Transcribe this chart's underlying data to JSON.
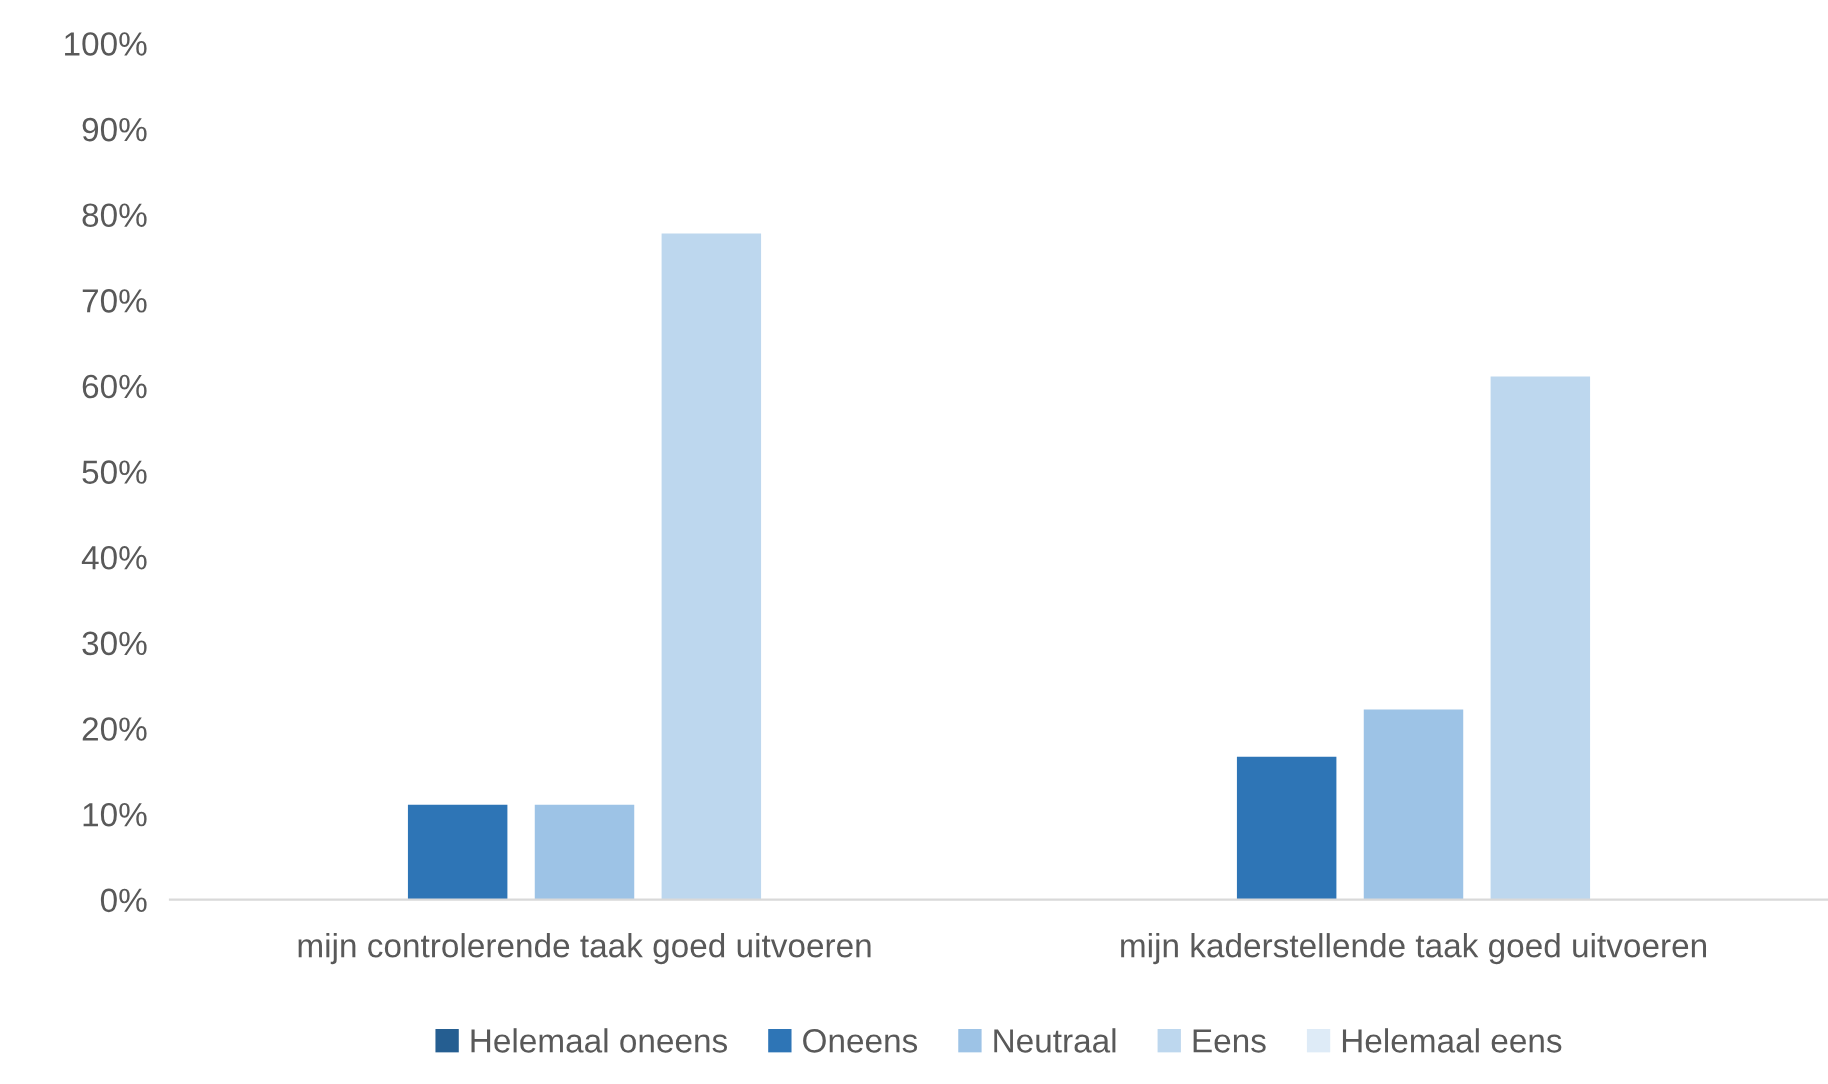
{
  "chart_data": {
    "type": "bar",
    "categories": [
      "mijn controlerende taak goed uitvoeren",
      "mijn kaderstellende taak goed uitvoeren"
    ],
    "series": [
      {
        "name": "Helemaal oneens",
        "color": "#255e91",
        "values": [
          0,
          0
        ]
      },
      {
        "name": "Oneens",
        "color": "#2e75b6",
        "values": [
          11.1,
          16.7
        ]
      },
      {
        "name": "Neutraal",
        "color": "#9dc3e6",
        "values": [
          11.1,
          22.2
        ]
      },
      {
        "name": "Eens",
        "color": "#bdd7ee",
        "values": [
          77.8,
          61.1
        ]
      },
      {
        "name": "Helemaal eens",
        "color": "#deebf7",
        "values": [
          0,
          0
        ]
      }
    ],
    "ylim": [
      0,
      100
    ],
    "yticks": [
      {
        "value": 0,
        "label": "0%"
      },
      {
        "value": 10,
        "label": "10%"
      },
      {
        "value": 20,
        "label": "20%"
      },
      {
        "value": 30,
        "label": "30%"
      },
      {
        "value": 40,
        "label": "40%"
      },
      {
        "value": 50,
        "label": "50%"
      },
      {
        "value": 60,
        "label": "60%"
      },
      {
        "value": 70,
        "label": "70%"
      },
      {
        "value": 80,
        "label": "80%"
      },
      {
        "value": 90,
        "label": "90%"
      },
      {
        "value": 100,
        "label": "100%"
      }
    ],
    "grid": false,
    "legend": "bottom"
  }
}
